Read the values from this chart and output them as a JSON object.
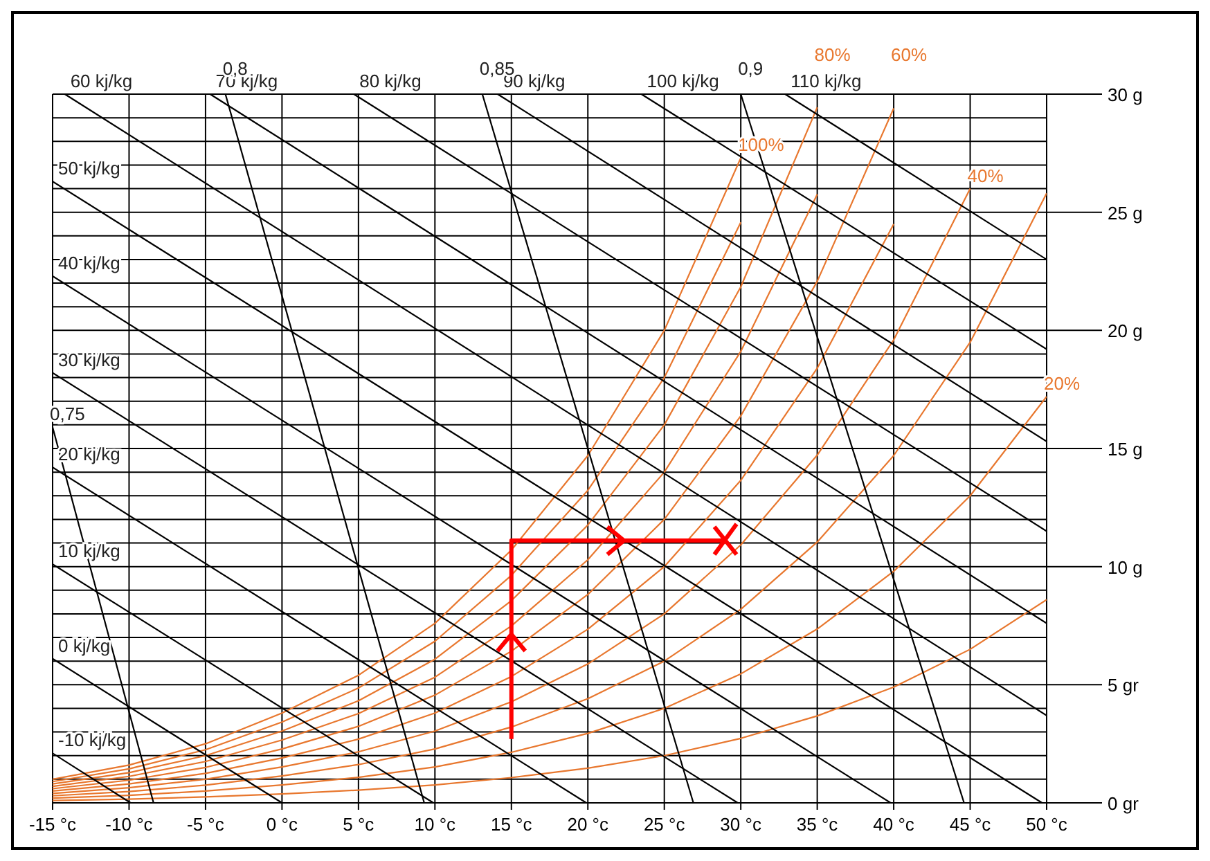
{
  "chart_data": {
    "type": "line",
    "marker": "none",
    "legend": false,
    "grid": true,
    "xlim": [
      -15,
      50
    ],
    "ylim": [
      0,
      30
    ],
    "xticks": [
      {
        "value": -15,
        "label": "-15 °c"
      },
      {
        "value": -10,
        "label": "-10 °c"
      },
      {
        "value": -5,
        "label": "-5 °c"
      },
      {
        "value": 0,
        "label": "0 °c"
      },
      {
        "value": 5,
        "label": "5 °c"
      },
      {
        "value": 10,
        "label": "10 °c"
      },
      {
        "value": 15,
        "label": "15 °c"
      },
      {
        "value": 20,
        "label": "20 °c"
      },
      {
        "value": 25,
        "label": "25 °c"
      },
      {
        "value": 30,
        "label": "30 °c"
      },
      {
        "value": 35,
        "label": "35 °c"
      },
      {
        "value": 40,
        "label": "40 °c"
      },
      {
        "value": 45,
        "label": "45 °c"
      },
      {
        "value": 50,
        "label": "50 °c"
      }
    ],
    "yticks": [
      {
        "value": 0,
        "label": "0 gr"
      },
      {
        "value": 1,
        "label": null
      },
      {
        "value": 2,
        "label": null
      },
      {
        "value": 3,
        "label": null
      },
      {
        "value": 4,
        "label": null
      },
      {
        "value": 5,
        "label": "5 gr"
      },
      {
        "value": 6,
        "label": null
      },
      {
        "value": 7,
        "label": null
      },
      {
        "value": 8,
        "label": null
      },
      {
        "value": 9,
        "label": null
      },
      {
        "value": 10,
        "label": "10 g"
      },
      {
        "value": 11,
        "label": null
      },
      {
        "value": 12,
        "label": null
      },
      {
        "value": 13,
        "label": null
      },
      {
        "value": 14,
        "label": null
      },
      {
        "value": 15,
        "label": "15 g"
      },
      {
        "value": 16,
        "label": null
      },
      {
        "value": 17,
        "label": null
      },
      {
        "value": 18,
        "label": null
      },
      {
        "value": 19,
        "label": null
      },
      {
        "value": 20,
        "label": "20 g"
      },
      {
        "value": 21,
        "label": null
      },
      {
        "value": 22,
        "label": null
      },
      {
        "value": 23,
        "label": null
      },
      {
        "value": 24,
        "label": null
      },
      {
        "value": 25,
        "label": "25 g"
      },
      {
        "value": 26,
        "label": null
      },
      {
        "value": 27,
        "label": null
      },
      {
        "value": 28,
        "label": null
      },
      {
        "value": 29,
        "label": null
      },
      {
        "value": 30,
        "label": "30 g"
      }
    ],
    "series": [
      {
        "name": "100%",
        "color": "#e8772e",
        "x": [
          -15,
          -10,
          -5,
          0,
          5,
          10,
          15,
          20,
          25,
          30
        ],
        "values": [
          1.0,
          1.6,
          2.5,
          3.8,
          5.4,
          7.6,
          10.7,
          14.7,
          20.0,
          27.3
        ]
      },
      {
        "color": "#e8772e",
        "x": [
          -15,
          -10,
          -5,
          0,
          5,
          10,
          15,
          20,
          25,
          30
        ],
        "values": [
          0.9,
          1.44,
          2.25,
          3.42,
          4.86,
          6.84,
          9.63,
          13.23,
          18.0,
          24.57
        ]
      },
      {
        "name": "80%",
        "color": "#e8772e",
        "x": [
          -15,
          -10,
          -5,
          0,
          5,
          10,
          15,
          20,
          25,
          30,
          35
        ],
        "values": [
          0.8,
          1.28,
          2.0,
          3.04,
          4.32,
          6.08,
          8.56,
          11.76,
          16.0,
          21.84,
          29.44
        ]
      },
      {
        "color": "#e8772e",
        "x": [
          -15,
          -10,
          -5,
          0,
          5,
          10,
          15,
          20,
          25,
          30,
          35
        ],
        "values": [
          0.7,
          1.12,
          1.75,
          2.66,
          3.78,
          5.32,
          7.49,
          10.29,
          14.0,
          19.11,
          25.76
        ]
      },
      {
        "name": "60%",
        "color": "#e8772e",
        "x": [
          -15,
          -10,
          -5,
          0,
          5,
          10,
          15,
          20,
          25,
          30,
          35,
          40
        ],
        "values": [
          0.6,
          0.96,
          1.5,
          2.28,
          3.24,
          4.56,
          6.42,
          8.82,
          12.0,
          16.38,
          22.08,
          29.4
        ]
      },
      {
        "color": "#e8772e",
        "x": [
          -15,
          -10,
          -5,
          0,
          5,
          10,
          15,
          20,
          25,
          30,
          35,
          40
        ],
        "values": [
          0.5,
          0.8,
          1.25,
          1.9,
          2.7,
          3.8,
          5.35,
          7.35,
          10.0,
          13.65,
          18.4,
          24.5
        ]
      },
      {
        "name": "40%",
        "color": "#e8772e",
        "x": [
          -15,
          -10,
          -5,
          0,
          5,
          10,
          15,
          20,
          25,
          30,
          35,
          40,
          45
        ],
        "values": [
          0.4,
          0.64,
          1.0,
          1.52,
          2.16,
          3.04,
          4.28,
          5.88,
          8.0,
          10.92,
          14.72,
          19.6,
          26.0
        ]
      },
      {
        "color": "#e8772e",
        "x": [
          -15,
          -10,
          -5,
          0,
          5,
          10,
          15,
          20,
          25,
          30,
          35,
          40,
          45,
          50
        ],
        "values": [
          0.3,
          0.48,
          0.75,
          1.14,
          1.62,
          2.28,
          3.21,
          4.41,
          6.0,
          8.19,
          11.04,
          14.7,
          19.5,
          25.8
        ]
      },
      {
        "name": "20%",
        "color": "#e8772e",
        "x": [
          -15,
          -10,
          -5,
          0,
          5,
          10,
          15,
          20,
          25,
          30,
          35,
          40,
          45,
          50
        ],
        "values": [
          0.2,
          0.32,
          0.5,
          0.76,
          1.08,
          1.52,
          2.14,
          2.94,
          4.0,
          5.46,
          7.36,
          9.8,
          13.0,
          17.2
        ]
      },
      {
        "color": "#e8772e",
        "x": [
          -15,
          -10,
          -5,
          0,
          5,
          10,
          15,
          20,
          25,
          30,
          35,
          40,
          45,
          50
        ],
        "values": [
          0.1,
          0.16,
          0.25,
          0.38,
          0.54,
          0.76,
          1.07,
          1.47,
          2.0,
          2.73,
          3.68,
          4.9,
          6.5,
          8.6
        ]
      },
      {
        "name": "-10 kj/kg",
        "color": "#000000",
        "x": [
          -15,
          -9.9
        ],
        "values": [
          2.1,
          0
        ]
      },
      {
        "name": "0 kj/kg",
        "color": "#000000",
        "x": [
          -15,
          0
        ],
        "values": [
          6.1,
          0
        ]
      },
      {
        "name": "10 kj/kg",
        "color": "#000000",
        "x": [
          -15,
          9.9
        ],
        "values": [
          10.1,
          0
        ]
      },
      {
        "name": "20 kj/kg",
        "color": "#000000",
        "x": [
          -15,
          19.9
        ],
        "values": [
          14.2,
          0
        ]
      },
      {
        "name": "30 kj/kg",
        "color": "#000000",
        "x": [
          -15,
          29.8
        ],
        "values": [
          18.2,
          0
        ]
      },
      {
        "name": "40 kj/kg",
        "color": "#000000",
        "x": [
          -15,
          39.8
        ],
        "values": [
          22.3,
          0
        ]
      },
      {
        "name": "50 kj/kg",
        "color": "#000000",
        "x": [
          -15,
          49.7
        ],
        "values": [
          26.3,
          0
        ]
      },
      {
        "name": "60 kj/kg",
        "color": "#000000",
        "x": [
          -14.2,
          50
        ],
        "values": [
          30,
          3.7
        ]
      },
      {
        "name": "70 kj/kg",
        "color": "#000000",
        "x": [
          -4.7,
          50
        ],
        "values": [
          30,
          7.6
        ]
      },
      {
        "name": "80 kj/kg",
        "color": "#000000",
        "x": [
          4.7,
          50
        ],
        "values": [
          30,
          11.5
        ]
      },
      {
        "name": "90 kj/kg",
        "color": "#000000",
        "x": [
          14.1,
          50
        ],
        "values": [
          30,
          15.3
        ]
      },
      {
        "name": "100 kj/kg",
        "color": "#000000",
        "x": [
          23.5,
          50
        ],
        "values": [
          30,
          19.2
        ]
      },
      {
        "name": "110 kj/kg",
        "color": "#000000",
        "x": [
          32.9,
          50
        ],
        "values": [
          30,
          23.0
        ]
      },
      {
        "name": "0,75",
        "color": "#000000",
        "x": [
          -15,
          -8.4
        ],
        "values": [
          15.9,
          0
        ]
      },
      {
        "name": "0,8",
        "color": "#000000",
        "x": [
          -3.7,
          9.3
        ],
        "values": [
          30,
          0
        ]
      },
      {
        "name": "0,85",
        "color": "#000000",
        "x": [
          13.1,
          26.9
        ],
        "values": [
          30,
          0
        ]
      },
      {
        "name": "0,9",
        "color": "#000000",
        "x": [
          30.0,
          44.6
        ],
        "values": [
          30,
          0
        ]
      },
      {
        "color": "#ff0000",
        "x": [
          15,
          15,
          29
        ],
        "values": [
          2.7,
          11.1,
          11.1
        ]
      }
    ]
  }
}
